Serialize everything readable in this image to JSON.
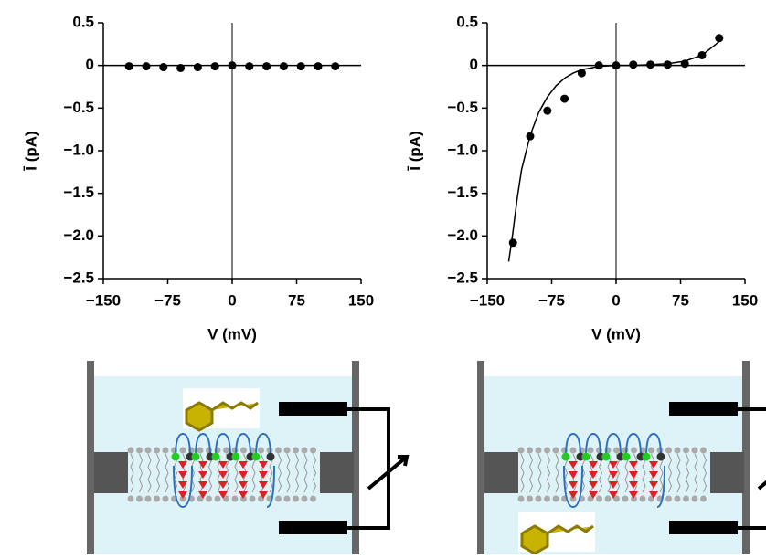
{
  "chart_data": [
    {
      "type": "scatter",
      "x_label": "V (mV)",
      "y_label": "Ī (pA)",
      "color": "#000000",
      "x": [
        -120,
        -100,
        -80,
        -60,
        -40,
        -20,
        0,
        20,
        40,
        60,
        80,
        100,
        120
      ],
      "values": [
        -0.01,
        -0.01,
        -0.02,
        -0.03,
        -0.02,
        -0.01,
        0,
        -0.01,
        -0.01,
        -0.01,
        -0.01,
        -0.01,
        -0.01
      ],
      "xlim": [
        -150,
        150
      ],
      "ylim": [
        -2.5,
        0.5
      ],
      "xticks": [
        {
          "value": -150,
          "label": "−150"
        },
        {
          "value": -75,
          "label": "−75"
        },
        0,
        75,
        150
      ],
      "yticks": [
        0.5,
        0,
        {
          "value": -0.5,
          "label": "−0.5"
        },
        {
          "value": -1.0,
          "label": "−1.0"
        },
        {
          "value": -1.5,
          "label": "−1.5"
        },
        {
          "value": -2.0,
          "label": "−2.0"
        },
        {
          "value": -2.5,
          "label": "−2.5"
        }
      ]
    },
    {
      "type": "scatter",
      "x_label": "V (mV)",
      "y_label": "Ī (pA)",
      "color": "#000000",
      "x": [
        -120,
        -100,
        -80,
        -60,
        -40,
        -20,
        0,
        20,
        40,
        60,
        80,
        100,
        120
      ],
      "values": [
        -2.08,
        -0.83,
        -0.53,
        -0.39,
        -0.09,
        0,
        0,
        0.01,
        0.01,
        0.01,
        0.02,
        0.12,
        0.32
      ],
      "fit": {
        "x": [
          -125,
          -120,
          -115,
          -110,
          -100,
          -90,
          -80,
          -70,
          -60,
          -50,
          -40,
          -20,
          0,
          20,
          40,
          60,
          80,
          100,
          120
        ],
        "values": [
          -2.3,
          -1.95,
          -1.55,
          -1.22,
          -0.82,
          -0.55,
          -0.37,
          -0.24,
          -0.15,
          -0.09,
          -0.05,
          -0.01,
          0,
          0,
          0.01,
          0.02,
          0.05,
          0.12,
          0.28
        ]
      },
      "xlim": [
        -150,
        150
      ],
      "ylim": [
        -2.5,
        0.5
      ],
      "xticks": [
        {
          "value": -150,
          "label": "−150"
        },
        {
          "value": -75,
          "label": "−75"
        },
        0,
        75,
        150
      ],
      "yticks": [
        0.5,
        0,
        {
          "value": -0.5,
          "label": "−0.5"
        },
        {
          "value": -1.0,
          "label": "−1.0"
        },
        {
          "value": -1.5,
          "label": "−1.5"
        },
        {
          "value": -2.0,
          "label": "−2.0"
        },
        {
          "value": -2.5,
          "label": "−2.5"
        }
      ]
    }
  ]
}
